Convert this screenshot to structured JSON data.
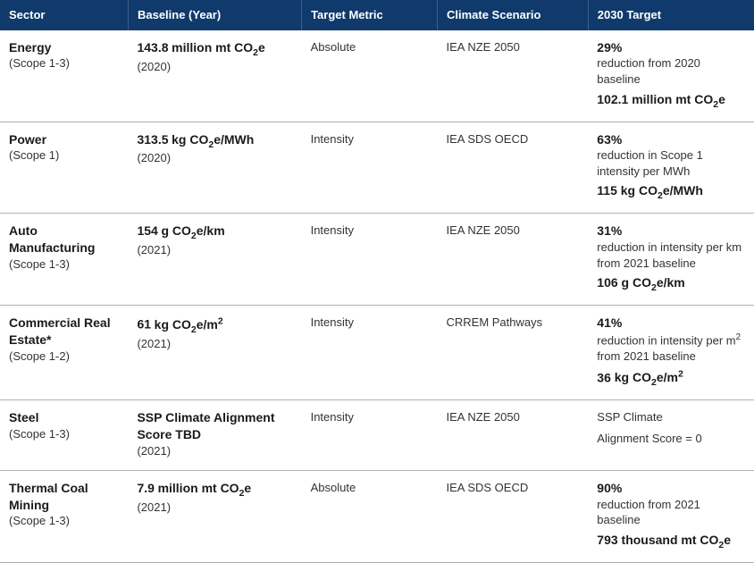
{
  "table": {
    "header_bg": "#0f3a6b",
    "header_fg": "#ffffff",
    "row_border": "#b0b0b0",
    "columns": [
      {
        "label": "Sector",
        "width": "17%"
      },
      {
        "label": "Baseline (Year)",
        "width": "23%"
      },
      {
        "label": "Target Metric",
        "width": "18%"
      },
      {
        "label": "Climate Scenario",
        "width": "20%"
      },
      {
        "label": "2030 Target",
        "width": "22%"
      }
    ],
    "rows": [
      {
        "sector": "Energy",
        "scope": "(Scope 1-3)",
        "baseline_value": "143.8",
        "baseline_unit_html": "million mt CO<sub>2</sub>e",
        "baseline_year": "(2020)",
        "metric": "Absolute",
        "scenario": "IEA NZE 2050",
        "target_pct": "29%",
        "target_desc": "reduction from 2020 baseline",
        "target_abs": "102.1",
        "target_abs_unit_html": "million mt CO<sub>2</sub>e"
      },
      {
        "sector": "Power",
        "scope": "(Scope 1)",
        "baseline_value": "313.5",
        "baseline_unit_html": "kg CO<sub>2</sub>e/MWh",
        "baseline_year": "(2020)",
        "metric": "Intensity",
        "scenario": "IEA SDS OECD",
        "target_pct": "63%",
        "target_desc": "reduction in Scope 1 intensity per MWh",
        "target_abs": "115",
        "target_abs_unit_html": "kg CO<sub>2</sub>e/MWh"
      },
      {
        "sector": "Auto Manufacturing",
        "scope": "(Scope 1-3)",
        "baseline_value": "154",
        "baseline_unit_html": "g CO<sub>2</sub>e/km",
        "baseline_year": "(2021)",
        "metric": "Intensity",
        "scenario": "IEA NZE 2050",
        "target_pct": "31%",
        "target_desc": "reduction in intensity per km from 2021 baseline",
        "target_abs": "106",
        "target_abs_unit_html": "g CO<sub>2</sub>e/km"
      },
      {
        "sector": "Commercial Real Estate*",
        "scope": "(Scope 1-2)",
        "baseline_value": "61",
        "baseline_unit_html": "kg CO<sub>2</sub>e/m<sup>2</sup>",
        "baseline_year": "(2021)",
        "metric": "Intensity",
        "scenario": "CRREM Pathways",
        "target_pct": "41%",
        "target_desc_html": "reduction in intensity per m<sup>2</sup> from 2021 baseline",
        "target_abs": "36",
        "target_abs_unit_html": "kg CO<sub>2</sub>e/m<sup>2</sup>"
      },
      {
        "sector": "Steel",
        "scope": "(Scope 1-3)",
        "baseline_plain_bold": "SSP Climate Alignment Score TBD",
        "baseline_year": "(2021)",
        "metric": "Intensity",
        "scenario": "IEA NZE 2050",
        "target_plain1": "SSP Climate",
        "target_plain2": "Alignment Score = 0"
      },
      {
        "sector": "Thermal Coal Mining",
        "scope": "(Scope 1-3)",
        "baseline_value": "7.9",
        "baseline_unit_html": "million mt CO<sub>2</sub>e",
        "baseline_year": "(2021)",
        "metric": "Absolute",
        "scenario": "IEA SDS OECD",
        "target_pct": "90%",
        "target_desc": "reduction from 2021 baseline",
        "target_abs": "793",
        "target_abs_unit_html": "thousand mt CO<sub>2</sub>e"
      }
    ]
  }
}
